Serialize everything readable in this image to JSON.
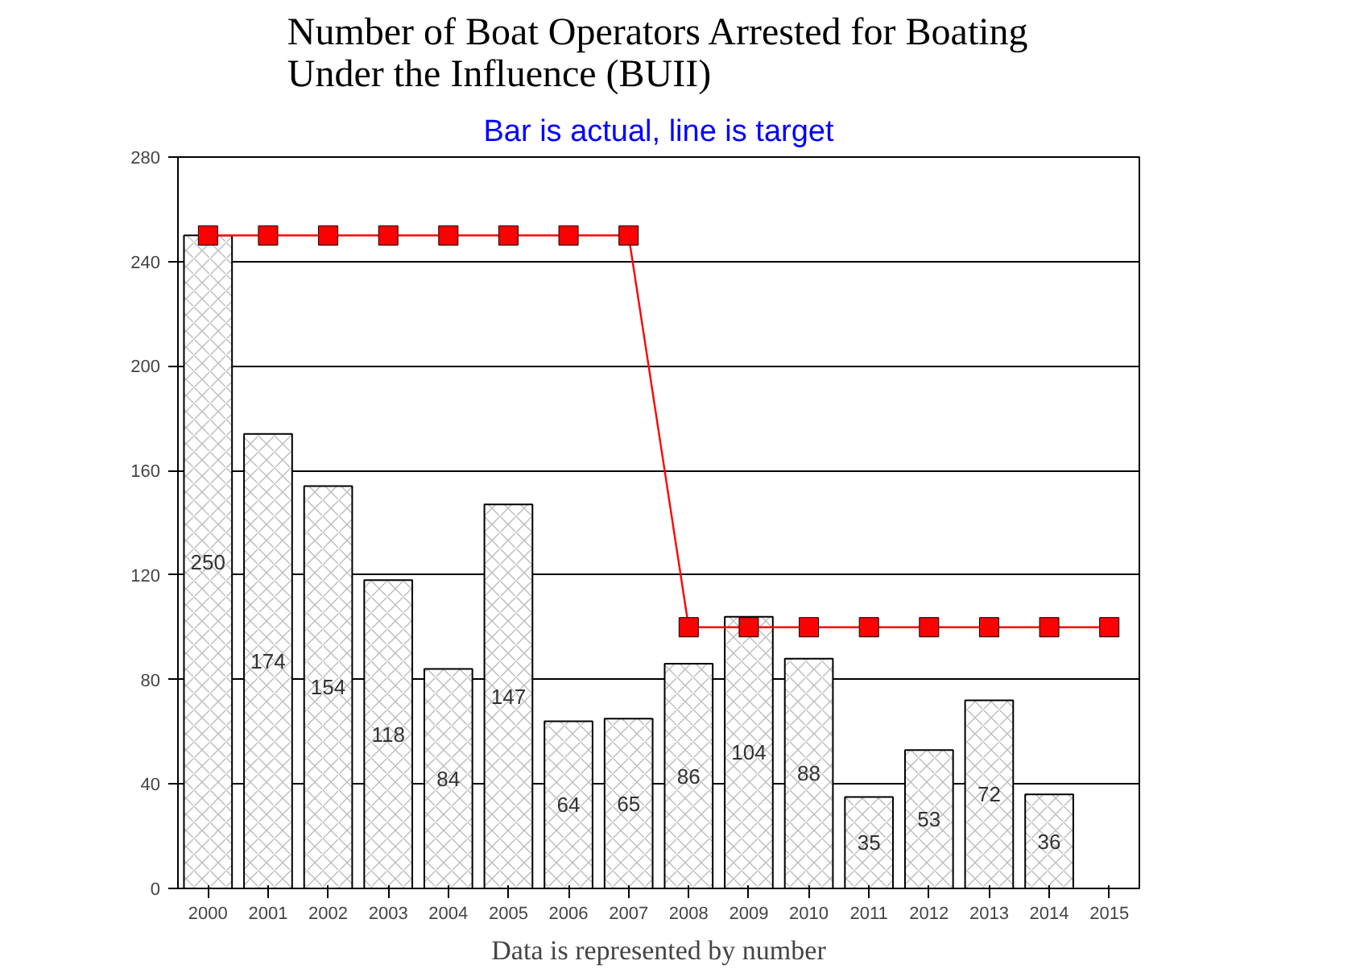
{
  "chart_data": {
    "type": "bar",
    "title": "Number of Boat Operators Arrested for Boating Under the Influence (BUII)",
    "subtitle": "Bar is actual, line is target",
    "categories": [
      "2000",
      "2001",
      "2002",
      "2003",
      "2004",
      "2005",
      "2006",
      "2007",
      "2008",
      "2009",
      "2010",
      "2011",
      "2012",
      "2013",
      "2014",
      "2015"
    ],
    "series": [
      {
        "color": "#ffffff",
        "values": [
          250,
          174,
          154,
          118,
          84,
          147,
          64,
          65,
          86,
          104,
          88,
          35,
          53,
          72,
          36,
          null
        ],
        "value_labels": [
          "250",
          "174",
          "154",
          "118",
          "84",
          "147",
          "64",
          "65",
          "86",
          "104",
          "88",
          "35",
          "53",
          "72",
          "36",
          null
        ]
      },
      {
        "type": "line",
        "color": "#ff0000",
        "marker": "square",
        "values": [
          250,
          250,
          250,
          250,
          250,
          250,
          250,
          250,
          100,
          100,
          100,
          100,
          100,
          100,
          100,
          100
        ]
      }
    ],
    "ylim": [
      0,
      280
    ],
    "yticks": [
      0,
      40,
      80,
      120,
      160,
      200,
      240,
      280
    ],
    "grid": "y",
    "annotations": [
      "Data is represented by number"
    ]
  }
}
